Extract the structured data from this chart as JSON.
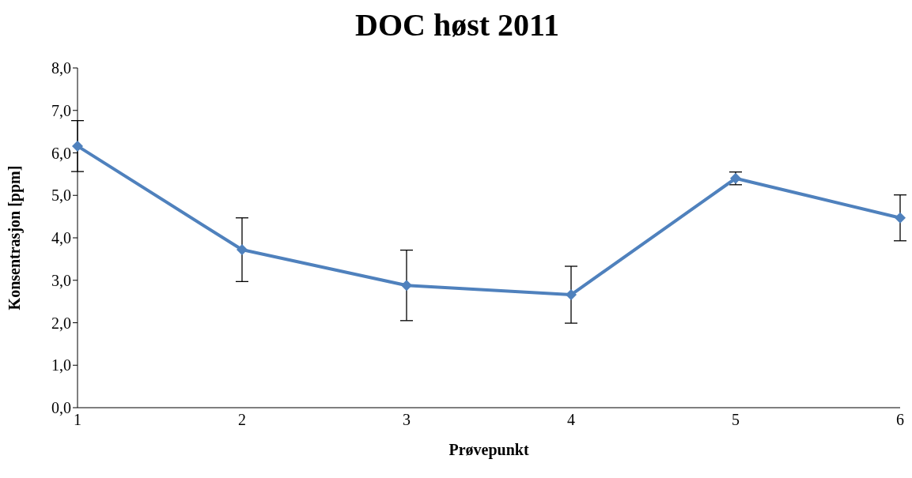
{
  "chart_data": {
    "type": "line",
    "title": "DOC høst 2011",
    "xlabel": "Prøvepunkt",
    "ylabel": "Konsentrasjon [ppm]",
    "categories": [
      "1",
      "2",
      "3",
      "4",
      "5",
      "6"
    ],
    "series": [
      {
        "color": "#4f81bd",
        "values": [
          6.16,
          3.72,
          2.88,
          2.66,
          5.4,
          4.47
        ],
        "errors": [
          0.6,
          0.75,
          0.83,
          0.67,
          0.15,
          0.54
        ]
      }
    ],
    "ylim": [
      0,
      8
    ],
    "yticks": [
      {
        "value": 0,
        "label": "0,0"
      },
      {
        "value": 1,
        "label": "1,0"
      },
      {
        "value": 2,
        "label": "2,0"
      },
      {
        "value": 3,
        "label": "3,0"
      },
      {
        "value": 4,
        "label": "4,0"
      },
      {
        "value": 5,
        "label": "5,0"
      },
      {
        "value": 6,
        "label": "6,0"
      },
      {
        "value": 7,
        "label": "7,0"
      },
      {
        "value": 8,
        "label": "8,0"
      }
    ],
    "grid": false,
    "legend": false,
    "marker": "diamond",
    "line_style": "solid"
  }
}
